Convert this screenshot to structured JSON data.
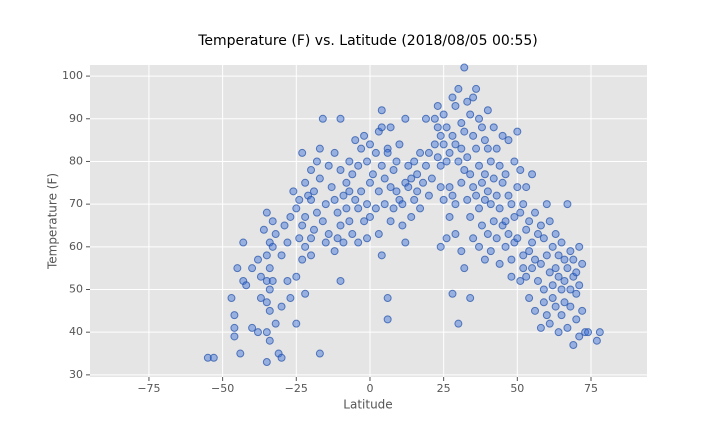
{
  "chart_data": {
    "type": "scatter",
    "title": "Temperature (F) vs. Latitude (2018/08/05 00:55)",
    "x_label": "Latitude",
    "y_label": "Temperature (F)",
    "grid": true,
    "xlim": [
      -95,
      94
    ],
    "ylim": [
      29.5,
      102.6
    ],
    "xticks": [
      {
        "value": -75,
        "label": "−75"
      },
      {
        "value": -50,
        "label": "−50"
      },
      {
        "value": -25,
        "label": "−25"
      },
      0,
      25,
      50,
      75
    ],
    "yticks": [
      30,
      40,
      50,
      60,
      70,
      80,
      90,
      100
    ],
    "color": "#3a6fd8",
    "x": [
      -55,
      -53,
      -47,
      -46,
      -46,
      -46,
      -45,
      -44,
      -43,
      -43,
      -42,
      -40,
      -40,
      -38,
      -38,
      -37,
      -37,
      -36,
      -35,
      -35,
      -35,
      -35,
      -35,
      -35,
      -34,
      -34,
      -34,
      -34,
      -34,
      -33,
      -33,
      -33,
      -32,
      -32,
      -31,
      -30,
      -30,
      -30,
      -29,
      -28,
      -28,
      -27,
      -27,
      -26,
      -25,
      -25,
      -25,
      -24,
      -24,
      -23,
      -23,
      -23,
      -22,
      -22,
      -22,
      -22,
      -21,
      -20,
      -20,
      -20,
      -20,
      -19,
      -19,
      -18,
      -18,
      -17,
      -17,
      -17,
      -16,
      -16,
      -15,
      -15,
      -14,
      -14,
      -13,
      -12,
      -12,
      -12,
      -11,
      -11,
      -10,
      -10,
      -10,
      -10,
      -9,
      -9,
      -8,
      -8,
      -7,
      -7,
      -7,
      -6,
      -6,
      -5,
      -5,
      -4,
      -4,
      -4,
      -3,
      -3,
      -2,
      -2,
      -1,
      -1,
      -1,
      0,
      0,
      0,
      1,
      2,
      2,
      3,
      3,
      3,
      4,
      4,
      4,
      4,
      5,
      5,
      6,
      6,
      6,
      6,
      7,
      7,
      7,
      8,
      8,
      9,
      9,
      10,
      10,
      11,
      11,
      12,
      12,
      12,
      13,
      13,
      14,
      14,
      15,
      15,
      16,
      16,
      17,
      17,
      18,
      19,
      19,
      20,
      20,
      21,
      22,
      22,
      23,
      23,
      23,
      24,
      24,
      24,
      24,
      25,
      25,
      25,
      26,
      26,
      26,
      27,
      27,
      27,
      28,
      28,
      28,
      28,
      29,
      29,
      29,
      29,
      30,
      30,
      30,
      31,
      31,
      31,
      31,
      32,
      32,
      32,
      32,
      33,
      33,
      33,
      34,
      34,
      34,
      34,
      35,
      35,
      35,
      35,
      36,
      36,
      36,
      37,
      37,
      37,
      37,
      38,
      38,
      38,
      39,
      39,
      39,
      39,
      40,
      40,
      40,
      40,
      41,
      41,
      41,
      42,
      42,
      42,
      43,
      43,
      43,
      44,
      44,
      44,
      45,
      45,
      45,
      46,
      46,
      46,
      47,
      47,
      47,
      48,
      48,
      48,
      49,
      49,
      49,
      50,
      50,
      50,
      51,
      51,
      51,
      52,
      52,
      52,
      53,
      53,
      53,
      54,
      54,
      54,
      55,
      55,
      55,
      56,
      56,
      56,
      57,
      57,
      58,
      58,
      58,
      59,
      59,
      59,
      60,
      60,
      60,
      61,
      61,
      61,
      62,
      62,
      62,
      63,
      63,
      63,
      64,
      64,
      64,
      65,
      65,
      65,
      66,
      66,
      66,
      67,
      67,
      67,
      68,
      68,
      68,
      69,
      69,
      69,
      70,
      70,
      70,
      71,
      71,
      71,
      72,
      72,
      73,
      74,
      77,
      78
    ],
    "values": [
      34,
      34,
      48,
      44,
      41,
      39,
      55,
      35,
      61,
      52,
      51,
      55,
      41,
      57,
      40,
      48,
      53,
      64,
      68,
      58,
      52,
      47,
      33,
      40,
      55,
      50,
      45,
      61,
      38,
      66,
      60,
      52,
      63,
      42,
      35,
      58,
      46,
      34,
      65,
      61,
      52,
      67,
      48,
      73,
      69,
      53,
      42,
      71,
      62,
      82,
      65,
      57,
      75,
      67,
      60,
      49,
      72,
      78,
      71,
      62,
      58,
      73,
      64,
      80,
      68,
      83,
      76,
      35,
      66,
      90,
      70,
      61,
      63,
      79,
      74,
      82,
      71,
      59,
      68,
      62,
      90,
      78,
      52,
      65,
      72,
      61,
      75,
      69,
      80,
      73,
      66,
      77,
      63,
      85,
      71,
      79,
      69,
      61,
      83,
      73,
      66,
      86,
      80,
      62,
      70,
      75,
      84,
      67,
      77,
      69,
      82,
      73,
      87,
      63,
      92,
      88,
      79,
      58,
      76,
      70,
      83,
      82,
      43,
      48,
      88,
      66,
      74,
      78,
      69,
      80,
      73,
      84,
      71,
      70,
      65,
      75,
      90,
      61,
      79,
      74,
      76,
      67,
      80,
      71,
      77,
      73,
      82,
      69,
      75,
      90,
      79,
      72,
      82,
      76,
      84,
      90,
      88,
      81,
      93,
      86,
      79,
      60,
      74,
      84,
      91,
      71,
      88,
      80,
      62,
      82,
      74,
      67,
      95,
      86,
      72,
      49,
      93,
      84,
      70,
      63,
      97,
      80,
      42,
      89,
      83,
      75,
      59,
      102,
      87,
      78,
      55,
      94,
      81,
      71,
      91,
      77,
      67,
      48,
      95,
      86,
      74,
      62,
      97,
      83,
      72,
      90,
      79,
      69,
      60,
      88,
      75,
      65,
      85,
      77,
      71,
      57,
      92,
      83,
      73,
      63,
      80,
      70,
      59,
      88,
      76,
      66,
      83,
      72,
      62,
      79,
      69,
      56,
      86,
      75,
      65,
      77,
      66,
      60,
      85,
      72,
      63,
      70,
      57,
      53,
      80,
      67,
      61,
      87,
      74,
      62,
      78,
      68,
      52,
      70,
      58,
      55,
      74,
      64,
      53,
      66,
      59,
      48,
      77,
      61,
      55,
      68,
      57,
      45,
      63,
      52,
      65,
      56,
      41,
      62,
      50,
      47,
      70,
      58,
      44,
      66,
      54,
      42,
      60,
      51,
      48,
      63,
      55,
      46,
      58,
      53,
      40,
      61,
      50,
      44,
      57,
      52,
      47,
      70,
      55,
      41,
      59,
      50,
      46,
      57,
      53,
      37,
      54,
      49,
      43,
      60,
      51,
      39,
      56,
      45,
      40,
      40,
      38,
      40
    ]
  }
}
